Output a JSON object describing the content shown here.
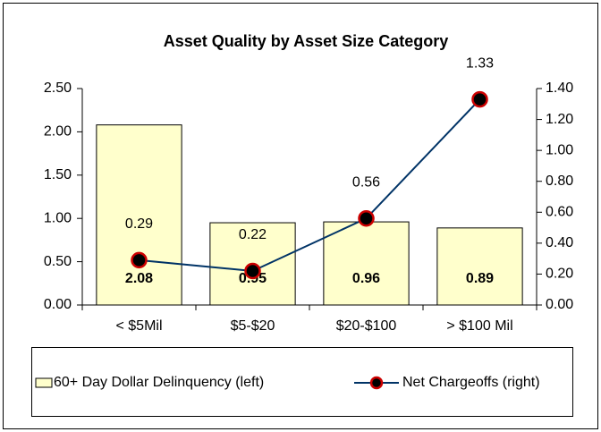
{
  "chart_data": {
    "type": "bar-line",
    "title": "Asset Quality by Asset Size Category",
    "categories": [
      "< $5Mil",
      "$5-$20",
      "$20-$100",
      "> $100 Mil"
    ],
    "series": [
      {
        "name": "60+ Day Dollar Delinquency (left)",
        "type": "bar",
        "color": "#ffffcc",
        "values": [
          2.08,
          0.95,
          0.96,
          0.89
        ]
      },
      {
        "name": "Net Chargeoffs (right)",
        "type": "line",
        "axis": "y2",
        "color": "#003366",
        "marker_color": "#cc0000",
        "values": [
          0.29,
          0.22,
          0.56,
          1.33
        ]
      }
    ],
    "ylim": [
      0,
      2.5
    ],
    "yticks": [
      {
        "value": 0,
        "label": "0.00"
      },
      {
        "value": 0.5,
        "label": "0.50"
      },
      {
        "value": 1,
        "label": "1.00"
      },
      {
        "value": 1.5,
        "label": "1.50"
      },
      {
        "value": 2,
        "label": "2.00"
      },
      {
        "value": 2.5,
        "label": "2.50"
      }
    ],
    "y2lim": [
      0,
      1.4
    ],
    "y2ticks": [
      {
        "value": 0,
        "label": "0.00"
      },
      {
        "value": 0.2,
        "label": "0.20"
      },
      {
        "value": 0.4,
        "label": "0.40"
      },
      {
        "value": 0.6,
        "label": "0.60"
      },
      {
        "value": 0.8,
        "label": "0.80"
      },
      {
        "value": 1,
        "label": "1.00"
      },
      {
        "value": 1.2,
        "label": "1.20"
      },
      {
        "value": 1.4,
        "label": "1.40"
      }
    ],
    "grid": false,
    "legend": "bottom"
  }
}
